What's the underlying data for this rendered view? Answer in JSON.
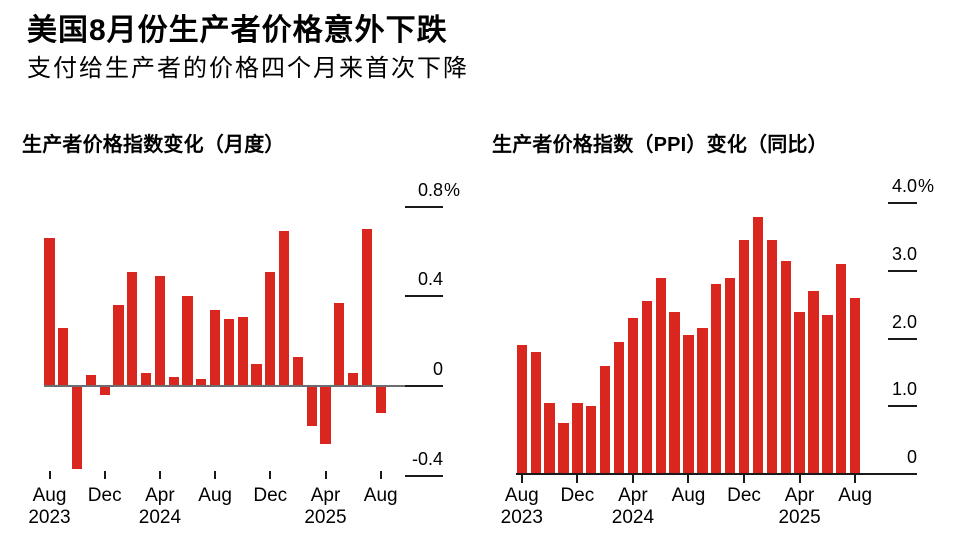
{
  "header": {
    "title": "美国8月份生产者价格意外下跌",
    "subtitle": "支付给生产者的价格四个月来首次下降"
  },
  "colors": {
    "bar": "#d9261f",
    "zero_axis_gray": "#6b6d70",
    "axis_black": "#1a1a1a",
    "text": "#000000"
  },
  "chart_data": [
    {
      "type": "bar",
      "title": "生产者价格指数变化（月度）",
      "unit": "%",
      "legend": null,
      "grid": false,
      "x": [
        "Aug 2023",
        "Sep 2023",
        "Oct 2023",
        "Nov 2023",
        "Dec 2023",
        "Jan 2024",
        "Feb 2024",
        "Mar 2024",
        "Apr 2024",
        "May 2024",
        "Jun 2024",
        "Jul 2024",
        "Aug 2024",
        "Sep 2024",
        "Oct 2024",
        "Nov 2024",
        "Dec 2024",
        "Jan 2025",
        "Feb 2025",
        "Mar 2025",
        "Apr 2025",
        "May 2025",
        "Jun 2025",
        "Jul 2025",
        "Aug 2025"
      ],
      "values": [
        0.66,
        0.26,
        -0.37,
        0.05,
        -0.04,
        0.36,
        0.51,
        0.06,
        0.49,
        0.04,
        0.4,
        0.03,
        0.34,
        0.3,
        0.31,
        0.1,
        0.51,
        0.69,
        0.13,
        -0.18,
        -0.26,
        0.37,
        0.06,
        0.7,
        -0.12
      ],
      "ylim": [
        -0.55,
        0.88
      ],
      "yticks": [
        {
          "v": 0.8,
          "label": "0.8%"
        },
        {
          "v": 0.4,
          "label": "0.4"
        },
        {
          "v": 0,
          "label": "0"
        },
        {
          "v": -0.4,
          "label": "-0.4"
        }
      ],
      "xticks": [
        {
          "i": 0,
          "month": "Aug",
          "year": "2023"
        },
        {
          "i": 4,
          "month": "Dec"
        },
        {
          "i": 8,
          "month": "Apr",
          "year": "2024"
        },
        {
          "i": 12,
          "month": "Aug"
        },
        {
          "i": 16,
          "month": "Dec"
        },
        {
          "i": 20,
          "month": "Apr",
          "year": "2025"
        },
        {
          "i": 24,
          "month": "Aug"
        }
      ]
    },
    {
      "type": "bar",
      "title": "生产者价格指数（PPI）变化（同比）",
      "unit": "%",
      "legend": null,
      "grid": false,
      "x": [
        "Aug 2023",
        "Sep 2023",
        "Oct 2023",
        "Nov 2023",
        "Dec 2023",
        "Jan 2024",
        "Feb 2024",
        "Mar 2024",
        "Apr 2024",
        "May 2024",
        "Jun 2024",
        "Jul 2024",
        "Aug 2024",
        "Sep 2024",
        "Oct 2024",
        "Nov 2024",
        "Dec 2024",
        "Jan 2025",
        "Feb 2025",
        "Mar 2025",
        "Apr 2025",
        "May 2025",
        "Jun 2025",
        "Jul 2025",
        "Aug 2025"
      ],
      "values": [
        1.9,
        1.8,
        1.05,
        0.75,
        1.05,
        1.0,
        1.6,
        1.95,
        2.3,
        2.55,
        2.9,
        2.4,
        2.05,
        2.15,
        2.8,
        2.9,
        3.45,
        3.8,
        3.45,
        3.15,
        2.4,
        2.7,
        2.35,
        3.1,
        2.6
      ],
      "ylim": [
        0,
        4.1
      ],
      "yticks": [
        {
          "v": 4.0,
          "label": "4.0%"
        },
        {
          "v": 3.0,
          "label": "3.0"
        },
        {
          "v": 2.0,
          "label": "2.0"
        },
        {
          "v": 1.0,
          "label": "1.0"
        },
        {
          "v": 0,
          "label": "0"
        }
      ],
      "xticks": [
        {
          "i": 0,
          "month": "Aug",
          "year": "2023"
        },
        {
          "i": 4,
          "month": "Dec"
        },
        {
          "i": 8,
          "month": "Apr",
          "year": "2024"
        },
        {
          "i": 12,
          "month": "Aug"
        },
        {
          "i": 16,
          "month": "Dec"
        },
        {
          "i": 20,
          "month": "Apr",
          "year": "2025"
        },
        {
          "i": 24,
          "month": "Aug"
        }
      ]
    }
  ]
}
